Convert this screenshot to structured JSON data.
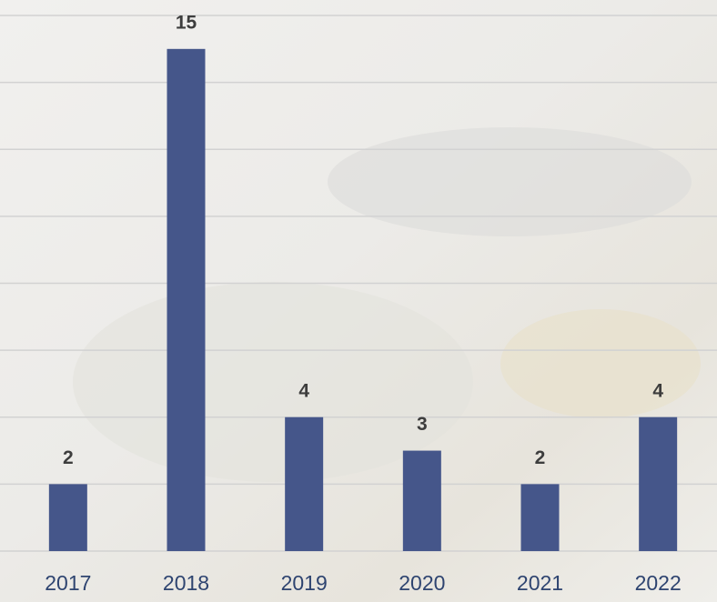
{
  "chart_data": {
    "type": "bar",
    "categories": [
      "2017",
      "2018",
      "2019",
      "2020",
      "2021",
      "2022"
    ],
    "values": [
      2,
      15,
      4,
      3,
      2,
      4
    ],
    "color": "#45568a",
    "ylim": [
      0,
      16
    ],
    "yticks": [
      0,
      2,
      4,
      6,
      8,
      10,
      12,
      14,
      16
    ],
    "grid": true
  }
}
